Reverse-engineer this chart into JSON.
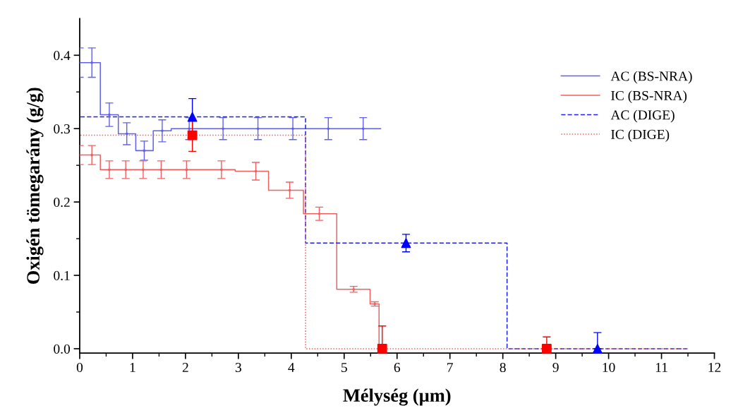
{
  "chart_data": {
    "type": "step",
    "xlabel": "Mélység (µm)",
    "ylabel": "Oxigén tömegarány (g/g)",
    "xlim": [
      0,
      12
    ],
    "ylim": [
      -0.006,
      0.45
    ],
    "xticks": [
      0,
      {
        "value": 0.5,
        "label": null
      },
      1,
      {
        "value": 1.5,
        "label": null
      },
      2,
      {
        "value": 2.5,
        "label": null
      },
      3,
      {
        "value": 3.5,
        "label": null
      },
      4,
      {
        "value": 4.5,
        "label": null
      },
      5,
      {
        "value": 5.5,
        "label": null
      },
      6,
      {
        "value": 6.5,
        "label": null
      },
      7,
      {
        "value": 7.5,
        "label": null
      },
      8,
      {
        "value": 8.5,
        "label": null
      },
      9,
      {
        "value": 9.5,
        "label": null
      },
      10,
      {
        "value": 10.5,
        "label": null
      },
      11,
      {
        "value": 11.5,
        "label": null
      },
      12
    ],
    "yticks": [
      {
        "value": 0,
        "label": "0.0"
      },
      {
        "value": 0.05,
        "label": null
      },
      {
        "value": 0.1,
        "label": "0.1"
      },
      {
        "value": 0.15,
        "label": null
      },
      {
        "value": 0.2,
        "label": "0.2"
      },
      {
        "value": 0.25,
        "label": null
      },
      {
        "value": 0.3,
        "label": "0.3"
      },
      {
        "value": 0.35,
        "label": null
      },
      {
        "value": 0.4,
        "label": "0.4"
      }
    ],
    "grid": false,
    "legend": "top right",
    "series": [
      {
        "name": "AC (BS-NRA)",
        "color": "#6060f0",
        "line_style": "solid",
        "x": [
          0,
          0.39,
          0.73,
          1.06,
          1.39,
          1.73,
          5.69
        ],
        "values": [
          0.39,
          0.319,
          0.293,
          0.27,
          0.297,
          0.3,
          0.3
        ]
      },
      {
        "type": "scatter",
        "color": "#6060f0",
        "marker": "none",
        "x": [
          0,
          0.23,
          0.56,
          0.89,
          1.22,
          1.56,
          2.07,
          2.71,
          3.37,
          4.03,
          4.7,
          5.36
        ],
        "values": [
          0.39,
          0.39,
          0.319,
          0.293,
          0.27,
          0.297,
          0.3,
          0.3,
          0.3,
          0.3,
          0.3,
          0.3
        ],
        "errors": [
          0.02,
          0.02,
          0.016,
          0.015,
          0.013,
          0.015,
          0.015,
          0.015,
          0.015,
          0.015,
          0.015,
          0.015
        ]
      },
      {
        "name": "IC (BS-NRA)",
        "color": "#f06060",
        "line_style": "solid",
        "x": [
          0,
          0.39,
          2.94,
          3.57,
          4.23,
          4.86,
          5.49,
          5.66
        ],
        "values": [
          0.264,
          0.244,
          0.242,
          0.216,
          0.184,
          0.081,
          0.061,
          0
        ]
      },
      {
        "type": "scatter",
        "color": "#f06060",
        "marker": "none",
        "x": [
          0,
          0.23,
          0.56,
          0.87,
          1.2,
          1.54,
          2.02,
          2.68,
          3.33,
          3.97,
          4.53,
          5.18,
          5.58
        ],
        "values": [
          0.264,
          0.264,
          0.244,
          0.244,
          0.244,
          0.244,
          0.244,
          0.244,
          0.242,
          0.216,
          0.184,
          0.081,
          0.061
        ],
        "errors": [
          0.013,
          0.013,
          0.012,
          0.012,
          0.012,
          0.012,
          0.012,
          0.012,
          0.012,
          0.011,
          0.009,
          0.004,
          0.003
        ]
      },
      {
        "name": "AC (DIGE)",
        "color": "#2020e8",
        "line_style": "dashed",
        "x": [
          0,
          4.27,
          8.08,
          11.49
        ],
        "values": [
          0.316,
          0.144,
          0,
          0
        ]
      },
      {
        "name": "IC (DIGE)",
        "color": "#f06060",
        "line_style": "dotted",
        "x": [
          0,
          4.27,
          11.49
        ],
        "values": [
          0.291,
          0,
          0
        ]
      },
      {
        "type": "scatter",
        "color": "#0000ff",
        "marker": "triangle",
        "x": [
          2.13,
          6.17,
          9.79
        ],
        "values": [
          0.316,
          0.144,
          0
        ],
        "errors": [
          0.025,
          0.012,
          [
            0,
            0.022
          ]
        ]
      },
      {
        "type": "scatter",
        "color": "#ff0000",
        "marker": "square",
        "x": [
          2.13,
          5.72,
          8.83
        ],
        "values": [
          0.291,
          0,
          0
        ],
        "errors": [
          0.022,
          [
            0,
            0.031
          ],
          [
            0,
            0.016
          ]
        ]
      }
    ]
  }
}
